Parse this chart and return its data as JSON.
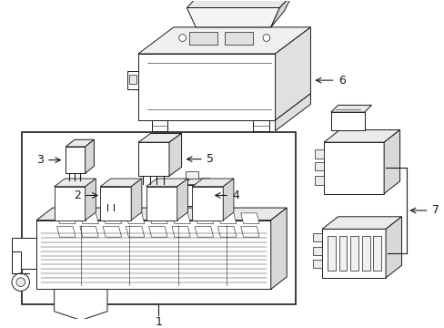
{
  "background_color": "#ffffff",
  "line_color": "#1a1a1a",
  "lw": 0.7,
  "fig_w": 4.89,
  "fig_h": 3.6,
  "dpi": 100
}
